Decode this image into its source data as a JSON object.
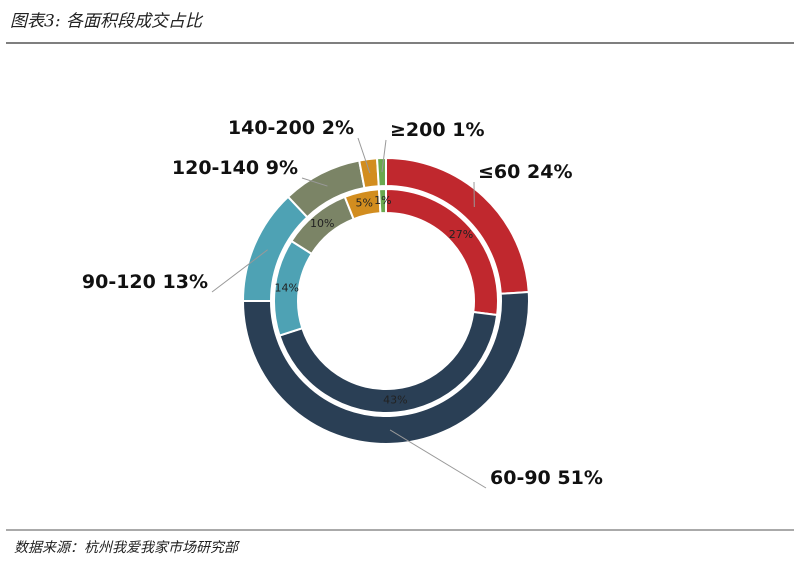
{
  "chart_data": {
    "type": "donut",
    "title": "图表3:  各面积段成交占比",
    "source": "数据来源：杭州我爱我家市场研究部",
    "categories": [
      "≤60",
      "60-90",
      "90-120",
      "120-140",
      "140-200",
      "≥200"
    ],
    "colors": [
      "#c0282e",
      "#2a3f55",
      "#4ea2b4",
      "#7b8466",
      "#d28d1f",
      "#6aa84f"
    ],
    "series": [
      {
        "values": [
          24,
          51,
          13,
          9,
          2,
          1
        ],
        "value_labels": [
          "24%",
          "51%",
          "13%",
          "9%",
          "2%",
          "1%"
        ]
      },
      {
        "values": [
          27,
          43,
          14,
          10,
          5,
          1
        ],
        "value_labels": [
          "27%",
          "43%",
          "14%",
          "10%",
          "5%",
          "1%"
        ]
      }
    ]
  }
}
